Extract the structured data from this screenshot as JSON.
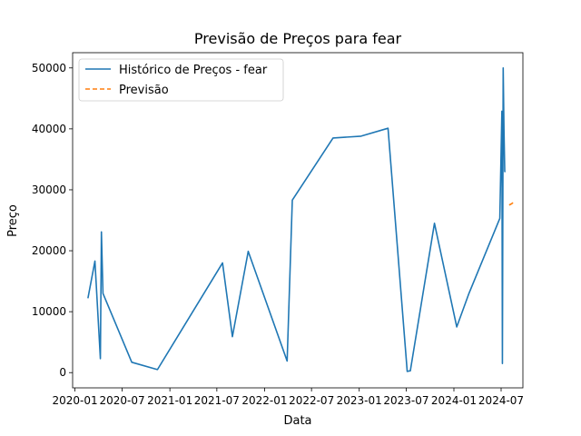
{
  "chart_data": {
    "type": "line",
    "title": "Previsão de Preços para fear",
    "xlabel": "Data",
    "ylabel": "Preço",
    "xlim": [
      "2019-12-23",
      "2024-09-23"
    ],
    "ylim": [
      -2500,
      52500
    ],
    "grid": false,
    "legend_position": "top-left",
    "x_ticks": [
      "2020-01-01",
      "2020-07-01",
      "2021-01-01",
      "2021-07-01",
      "2022-01-01",
      "2022-07-01",
      "2023-01-01",
      "2023-07-01",
      "2024-01-01",
      "2024-07-01"
    ],
    "x_tick_labels": [
      "2020-01",
      "2020-07",
      "2021-01",
      "2021-07",
      "2022-01",
      "2022-07",
      "2023-01",
      "2023-07",
      "2024-01",
      "2024-07"
    ],
    "y_ticks": [
      0,
      10000,
      20000,
      30000,
      40000,
      50000
    ],
    "y_tick_labels": [
      "0",
      "10000",
      "20000",
      "30000",
      "40000",
      "50000"
    ],
    "series": [
      {
        "name": "Histórico de Preços - fear",
        "color": "#1f77b4",
        "style": "solid",
        "x": [
          "2020-02-20",
          "2020-03-18",
          "2020-04-08",
          "2020-04-12",
          "2020-04-18",
          "2020-08-07",
          "2020-11-14",
          "2021-07-23",
          "2021-08-30",
          "2021-10-30",
          "2022-03-29",
          "2022-04-18",
          "2022-09-22",
          "2023-01-08",
          "2023-04-22",
          "2023-07-05",
          "2023-07-17",
          "2023-10-18",
          "2024-01-12",
          "2024-02-28",
          "2024-06-26",
          "2024-07-04",
          "2024-07-06",
          "2024-07-09",
          "2024-07-12",
          "2024-07-15",
          "2024-07-18"
        ],
        "values": [
          12200,
          18300,
          2300,
          23100,
          13000,
          1700,
          500,
          18000,
          5900,
          19900,
          1900,
          28300,
          38500,
          38800,
          40100,
          200,
          300,
          24500,
          7500,
          13000,
          25300,
          42900,
          1500,
          50000,
          40000,
          33000,
          33000
        ]
      },
      {
        "name": "Previsão",
        "color": "#ff7f0e",
        "style": "dashed",
        "x": [
          "2024-08-01",
          "2024-08-10",
          "2024-08-20"
        ],
        "values": [
          27500,
          27700,
          28000
        ]
      }
    ]
  }
}
